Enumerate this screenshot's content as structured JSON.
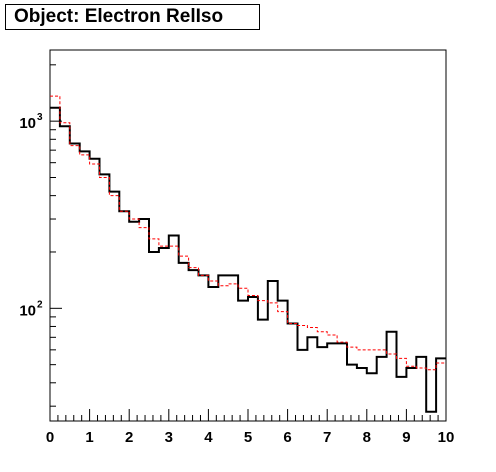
{
  "title": "Object: Electron RelIso",
  "chart_data": {
    "type": "histogram",
    "title": "Object: Electron RelIso",
    "xlabel": "",
    "ylabel": "",
    "xlim": [
      0,
      10
    ],
    "ylim": [
      25,
      2400
    ],
    "y_log_scale": true,
    "x_ticks": [
      "0",
      "1",
      "2",
      "3",
      "4",
      "5",
      "6",
      "7",
      "8",
      "9",
      "10"
    ],
    "y_ticks": [
      {
        "label": "10",
        "exp": "2",
        "value": 100
      },
      {
        "label": "10",
        "exp": "3",
        "value": 1000
      }
    ],
    "bin_width": 0.25,
    "series": [
      {
        "name": "",
        "color": "#000000",
        "style": "solid",
        "values": [
          1180,
          940,
          760,
          690,
          630,
          520,
          420,
          330,
          290,
          300,
          200,
          210,
          245,
          175,
          160,
          150,
          130,
          150,
          150,
          110,
          115,
          87,
          140,
          110,
          83,
          60,
          70,
          62,
          65,
          65,
          50,
          48,
          45,
          55,
          75,
          43,
          48,
          55,
          28,
          54
        ]
      },
      {
        "name": "",
        "color": "#ff0000",
        "style": "dashed",
        "values": [
          1360,
          980,
          740,
          660,
          590,
          500,
          400,
          330,
          300,
          270,
          235,
          215,
          215,
          190,
          165,
          150,
          140,
          132,
          135,
          128,
          117,
          110,
          107,
          96,
          83,
          81,
          79,
          75,
          72,
          66,
          62,
          60,
          60,
          60,
          57,
          54,
          49,
          48,
          47,
          51
        ]
      }
    ]
  }
}
